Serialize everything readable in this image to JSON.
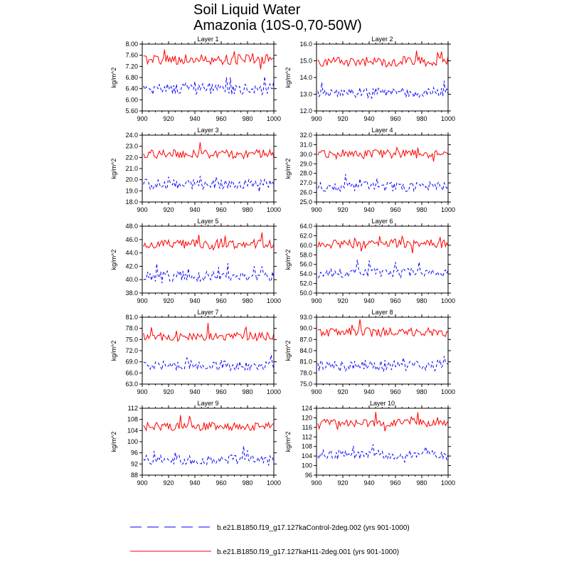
{
  "figure": {
    "title_line1": "Soil Liquid Water",
    "title_line2": "Amazonia (10S-0,70-50W)"
  },
  "legend": [
    {
      "label": "b.e21.B1850.f19_g17.127kaControl-2deg.002 (yrs 901-1000)",
      "color": "#0000ff",
      "style": "dashed"
    },
    {
      "label": "b.e21.B1850.f19_g17.127kaH11-2deg.001 (yrs 901-1000)",
      "color": "#ff0000",
      "style": "solid"
    }
  ],
  "chart_data": [
    {
      "type": "line",
      "title": "Layer 1",
      "xlabel": "",
      "ylabel": "kg/m^2",
      "xlim": [
        900,
        1000
      ],
      "xticks": [
        "900",
        "920",
        "940",
        "960",
        "980",
        "1000"
      ],
      "ylim": [
        5.6,
        8.0
      ],
      "yticks": [
        "5.60",
        "6.00",
        "6.40",
        "6.80",
        "7.20",
        "7.60",
        "8.00"
      ],
      "series": [
        {
          "name": "b.e21.B1850.f19_g17.127kaH11-2deg.001 (yrs 901-1000)",
          "color": "#ff0000",
          "style": "solid",
          "mean": 7.45,
          "amp": 0.18,
          "spike": 0.3
        },
        {
          "name": "b.e21.B1850.f19_g17.127kaControl-2deg.002 (yrs 901-1000)",
          "color": "#0000ff",
          "style": "dashed",
          "mean": 6.38,
          "amp": 0.2,
          "spike": 0.3
        }
      ]
    },
    {
      "type": "line",
      "title": "Layer 2",
      "xlabel": "",
      "ylabel": "kg/m^2",
      "xlim": [
        900,
        1000
      ],
      "xticks": [
        "900",
        "920",
        "940",
        "960",
        "980",
        "1000"
      ],
      "ylim": [
        12.0,
        16.0
      ],
      "yticks": [
        "12.0",
        "13.0",
        "14.0",
        "15.0",
        "16.0"
      ],
      "series": [
        {
          "name": "b.e21.B1850.f19_g17.127kaH11-2deg.001 (yrs 901-1000)",
          "color": "#ff0000",
          "style": "solid",
          "mean": 14.95,
          "amp": 0.3,
          "spike": 0.5
        },
        {
          "name": "b.e21.B1850.f19_g17.127kaControl-2deg.002 (yrs 901-1000)",
          "color": "#0000ff",
          "style": "dashed",
          "mean": 13.1,
          "amp": 0.3,
          "spike": 0.5
        }
      ]
    },
    {
      "type": "line",
      "title": "Layer 3",
      "xlabel": "",
      "ylabel": "kg/m^2",
      "xlim": [
        900,
        1000
      ],
      "xticks": [
        "900",
        "920",
        "940",
        "960",
        "980",
        "1000"
      ],
      "ylim": [
        18.0,
        24.0
      ],
      "yticks": [
        "18.0",
        "19.0",
        "20.0",
        "21.0",
        "22.0",
        "23.0",
        "24.0"
      ],
      "series": [
        {
          "name": "b.e21.B1850.f19_g17.127kaH11-2deg.001 (yrs 901-1000)",
          "color": "#ff0000",
          "style": "solid",
          "mean": 22.3,
          "amp": 0.4,
          "spike": 0.8
        },
        {
          "name": "b.e21.B1850.f19_g17.127kaControl-2deg.002 (yrs 901-1000)",
          "color": "#0000ff",
          "style": "dashed",
          "mean": 19.6,
          "amp": 0.45,
          "spike": 0.8
        }
      ]
    },
    {
      "type": "line",
      "title": "Layer 4",
      "xlabel": "",
      "ylabel": "kg/m^2",
      "xlim": [
        900,
        1000
      ],
      "xticks": [
        "900",
        "920",
        "940",
        "960",
        "980",
        "1000"
      ],
      "ylim": [
        25.0,
        32.0
      ],
      "yticks": [
        "25.0",
        "26.0",
        "27.0",
        "28.0",
        "29.0",
        "30.0",
        "31.0",
        "32.0"
      ],
      "series": [
        {
          "name": "b.e21.B1850.f19_g17.127kaH11-2deg.001 (yrs 901-1000)",
          "color": "#ff0000",
          "style": "solid",
          "mean": 30.0,
          "amp": 0.5,
          "spike": 0.9
        },
        {
          "name": "b.e21.B1850.f19_g17.127kaControl-2deg.002 (yrs 901-1000)",
          "color": "#0000ff",
          "style": "dashed",
          "mean": 26.6,
          "amp": 0.5,
          "spike": 0.9
        }
      ]
    },
    {
      "type": "line",
      "title": "Layer 5",
      "xlabel": "",
      "ylabel": "kg/m^2",
      "xlim": [
        900,
        1000
      ],
      "xticks": [
        "900",
        "920",
        "940",
        "960",
        "980",
        "1000"
      ],
      "ylim": [
        38.0,
        48.0
      ],
      "yticks": [
        "38.0",
        "40.0",
        "42.0",
        "44.0",
        "46.0",
        "48.0"
      ],
      "series": [
        {
          "name": "b.e21.B1850.f19_g17.127kaH11-2deg.001 (yrs 901-1000)",
          "color": "#ff0000",
          "style": "solid",
          "mean": 45.3,
          "amp": 0.7,
          "spike": 1.3
        },
        {
          "name": "b.e21.B1850.f19_g17.127kaControl-2deg.002 (yrs 901-1000)",
          "color": "#0000ff",
          "style": "dashed",
          "mean": 40.5,
          "amp": 0.8,
          "spike": 1.3
        }
      ]
    },
    {
      "type": "line",
      "title": "Layer 6",
      "xlabel": "",
      "ylabel": "kg/m^2",
      "xlim": [
        900,
        1000
      ],
      "xticks": [
        "900",
        "920",
        "940",
        "960",
        "980",
        "1000"
      ],
      "ylim": [
        50.0,
        64.0
      ],
      "yticks": [
        "50.0",
        "52.0",
        "54.0",
        "56.0",
        "58.0",
        "60.0",
        "62.0",
        "64.0"
      ],
      "series": [
        {
          "name": "b.e21.B1850.f19_g17.127kaH11-2deg.001 (yrs 901-1000)",
          "color": "#ff0000",
          "style": "solid",
          "mean": 60.3,
          "amp": 0.9,
          "spike": 1.8
        },
        {
          "name": "b.e21.B1850.f19_g17.127kaControl-2deg.002 (yrs 901-1000)",
          "color": "#0000ff",
          "style": "dashed",
          "mean": 54.2,
          "amp": 1.0,
          "spike": 1.8
        }
      ]
    },
    {
      "type": "line",
      "title": "Layer 7",
      "xlabel": "",
      "ylabel": "kg/m^2",
      "xlim": [
        900,
        1000
      ],
      "xticks": [
        "900",
        "920",
        "940",
        "960",
        "980",
        "1000"
      ],
      "ylim": [
        63.0,
        81.0
      ],
      "yticks": [
        "63.0",
        "66.0",
        "69.0",
        "72.0",
        "75.0",
        "78.0",
        "81.0"
      ],
      "series": [
        {
          "name": "b.e21.B1850.f19_g17.127kaH11-2deg.001 (yrs 901-1000)",
          "color": "#ff0000",
          "style": "solid",
          "mean": 75.8,
          "amp": 1.1,
          "spike": 2.2
        },
        {
          "name": "b.e21.B1850.f19_g17.127kaControl-2deg.002 (yrs 901-1000)",
          "color": "#0000ff",
          "style": "dashed",
          "mean": 68.0,
          "amp": 1.3,
          "spike": 2.2
        }
      ]
    },
    {
      "type": "line",
      "title": "Layer 8",
      "xlabel": "",
      "ylabel": "kg/m^2",
      "xlim": [
        900,
        1000
      ],
      "xticks": [
        "900",
        "920",
        "940",
        "960",
        "980",
        "1000"
      ],
      "ylim": [
        75.0,
        93.0
      ],
      "yticks": [
        "75.0",
        "78.0",
        "81.0",
        "84.0",
        "87.0",
        "90.0",
        "93.0"
      ],
      "series": [
        {
          "name": "b.e21.B1850.f19_g17.127kaH11-2deg.001 (yrs 901-1000)",
          "color": "#ff0000",
          "style": "solid",
          "mean": 89.0,
          "amp": 1.2,
          "spike": 2.4
        },
        {
          "name": "b.e21.B1850.f19_g17.127kaControl-2deg.002 (yrs 901-1000)",
          "color": "#0000ff",
          "style": "dashed",
          "mean": 80.0,
          "amp": 1.5,
          "spike": 2.6
        }
      ]
    },
    {
      "type": "line",
      "title": "Layer 9",
      "xlabel": "",
      "ylabel": "kg/m^2",
      "xlim": [
        900,
        1000
      ],
      "xticks": [
        "900",
        "920",
        "940",
        "960",
        "980",
        "1000"
      ],
      "ylim": [
        88,
        112
      ],
      "yticks": [
        "88",
        "92",
        "96",
        "100",
        "104",
        "108",
        "112"
      ],
      "series": [
        {
          "name": "b.e21.B1850.f19_g17.127kaH11-2deg.001 (yrs 901-1000)",
          "color": "#ff0000",
          "style": "solid",
          "mean": 105.5,
          "amp": 1.5,
          "spike": 3.0
        },
        {
          "name": "b.e21.B1850.f19_g17.127kaControl-2deg.002 (yrs 901-1000)",
          "color": "#0000ff",
          "style": "dashed",
          "mean": 93.5,
          "amp": 1.8,
          "spike": 3.2
        }
      ]
    },
    {
      "type": "line",
      "title": "Layer 10",
      "xlabel": "",
      "ylabel": "kg/m^2",
      "xlim": [
        900,
        1000
      ],
      "xticks": [
        "900",
        "920",
        "940",
        "960",
        "980",
        "1000"
      ],
      "ylim": [
        96,
        124
      ],
      "yticks": [
        "96",
        "100",
        "104",
        "108",
        "112",
        "116",
        "120",
        "124"
      ],
      "series": [
        {
          "name": "b.e21.B1850.f19_g17.127kaH11-2deg.001 (yrs 901-1000)",
          "color": "#ff0000",
          "style": "solid",
          "mean": 117.8,
          "amp": 1.6,
          "spike": 3.2
        },
        {
          "name": "b.e21.B1850.f19_g17.127kaControl-2deg.002 (yrs 901-1000)",
          "color": "#0000ff",
          "style": "dashed",
          "mean": 104.5,
          "amp": 2.0,
          "spike": 3.5
        }
      ]
    }
  ]
}
